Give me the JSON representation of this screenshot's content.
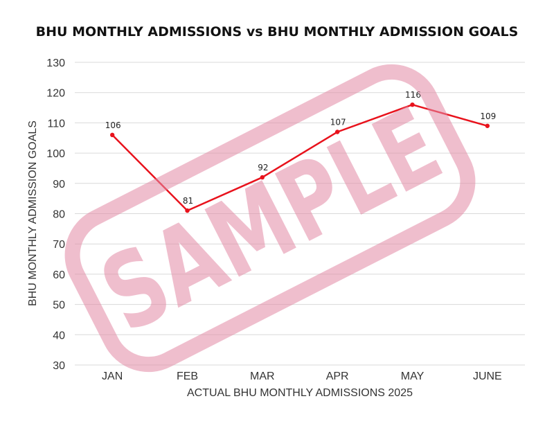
{
  "chart_data": {
    "type": "line",
    "title": "BHU MONTHLY ADMISSIONS vs BHU MONTHLY ADMISSION GOALS",
    "xlabel": "ACTUAL BHU MONTHLY ADMISSIONS 2025",
    "ylabel": "BHU MONTHLY ADMISSION GOALS",
    "categories": [
      "JAN",
      "FEB",
      "MAR",
      "APR",
      "MAY",
      "JUNE"
    ],
    "series": [
      {
        "values": [
          106,
          81,
          92,
          107,
          116,
          109
        ],
        "color": "#e8121c"
      }
    ],
    "ylim": [
      30,
      130
    ],
    "yticks": [
      30,
      40,
      50,
      60,
      70,
      80,
      90,
      100,
      110,
      120,
      130
    ],
    "grid": true,
    "data_labels": true
  },
  "watermark": {
    "text": "SAMPLE",
    "color": "#e38aa6"
  }
}
